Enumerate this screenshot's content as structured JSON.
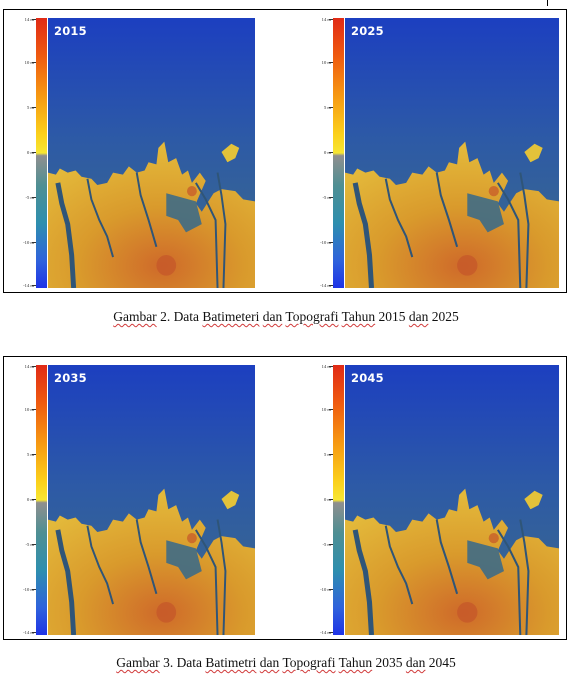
{
  "figures": [
    {
      "caption": "Gambar 2. Data Batimeteri dan Topografi Tahun 2015 dan 2025",
      "panels": [
        {
          "year": "2015"
        },
        {
          "year": "2025"
        }
      ]
    },
    {
      "caption": "Gambar 3. Data Batimetri dan Topografi Tahun 2035 dan 2045",
      "panels": [
        {
          "year": "2035"
        },
        {
          "year": "2045"
        }
      ]
    }
  ],
  "scale_ticks": [
    "14 m",
    "10 m",
    "5 m",
    "0 m",
    "-5 m",
    "-10 m",
    "-14 m"
  ],
  "colors": {
    "sea_deep": "#1c3fc0",
    "sea_shallow": "#3e6c86",
    "land": "#d99a2c",
    "land_high": "#c5562a",
    "river": "#2f5578"
  }
}
